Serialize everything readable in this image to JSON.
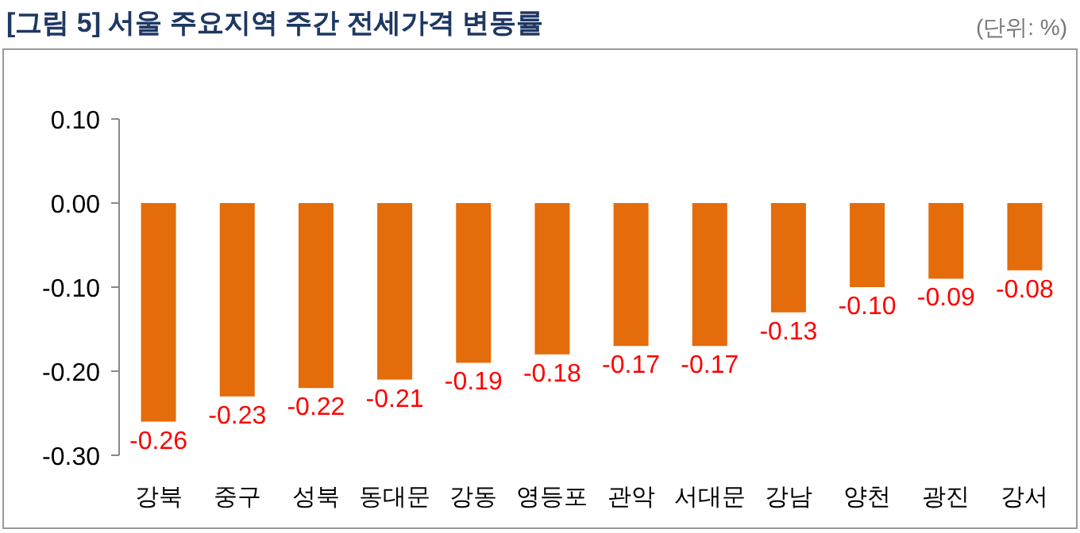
{
  "chart_data": {
    "type": "bar",
    "title": "[그림 5] 서울 주요지역 주간 전세가격 변동률",
    "annotations": [
      "(단위: %)"
    ],
    "categories": [
      "강북",
      "중구",
      "성북",
      "동대문",
      "강동",
      "영등포",
      "관악",
      "서대문",
      "강남",
      "양천",
      "광진",
      "강서"
    ],
    "values": [
      -0.26,
      -0.23,
      -0.22,
      -0.21,
      -0.19,
      -0.18,
      -0.17,
      -0.17,
      -0.13,
      -0.1,
      -0.09,
      -0.08
    ],
    "value_labels": [
      "-0.26",
      "-0.23",
      "-0.22",
      "-0.21",
      "-0.19",
      "-0.18",
      "-0.17",
      "-0.17",
      "-0.13",
      "-0.10",
      "-0.09",
      "-0.08"
    ],
    "color": "#e46c0a",
    "ylim": [
      -0.3,
      0.1
    ],
    "yticks": [
      {
        "value": 0.1,
        "label": "0.10"
      },
      {
        "value": 0,
        "label": "0.00"
      },
      {
        "value": -0.1,
        "label": "-0.10"
      },
      {
        "value": -0.2,
        "label": "-0.20"
      },
      {
        "value": -0.3,
        "label": "-0.30"
      }
    ],
    "grid": false
  }
}
